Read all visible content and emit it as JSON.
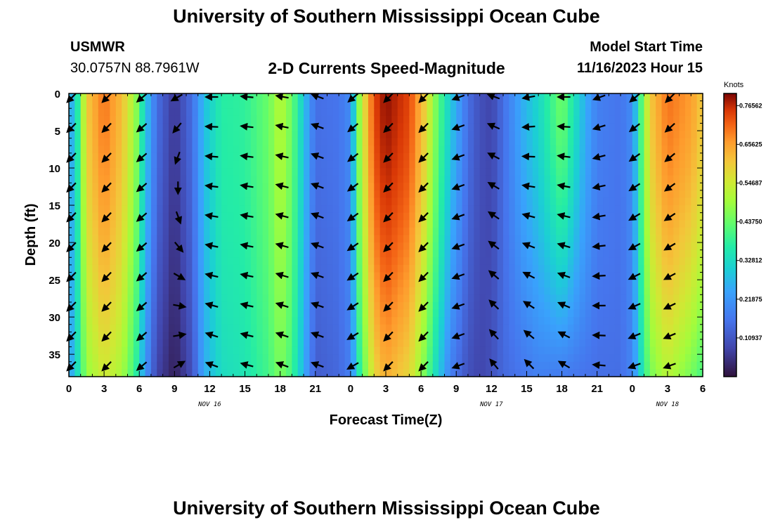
{
  "page": {
    "title_top": "University of Southern Mississippi Ocean Cube",
    "title_bottom": "University of Southern Mississippi Ocean Cube",
    "station": "USMWR",
    "coords": "30.0757N  88.7961W",
    "subtitle": "2-D Currents Speed-Magnitude",
    "model_label": "Model Start Time",
    "model_time": "11/16/2023 Hour 15"
  },
  "chart_data": {
    "type": "heatmap",
    "title": "2-D Currents Speed-Magnitude",
    "xlabel": "Forecast Time(Z)",
    "ylabel": "Depth (ft)",
    "colorbar_unit": "Knots",
    "x_range_hours": [
      0,
      54
    ],
    "y_range_ft": [
      0,
      38
    ],
    "x_ticks": [
      {
        "h": 0,
        "label": "0"
      },
      {
        "h": 3,
        "label": "3"
      },
      {
        "h": 6,
        "label": "6"
      },
      {
        "h": 9,
        "label": "9"
      },
      {
        "h": 12,
        "label": "12"
      },
      {
        "h": 15,
        "label": "15"
      },
      {
        "h": 18,
        "label": "18"
      },
      {
        "h": 21,
        "label": "21"
      },
      {
        "h": 24,
        "label": "0"
      },
      {
        "h": 27,
        "label": "3"
      },
      {
        "h": 30,
        "label": "6"
      },
      {
        "h": 33,
        "label": "9"
      },
      {
        "h": 36,
        "label": "12"
      },
      {
        "h": 39,
        "label": "15"
      },
      {
        "h": 42,
        "label": "18"
      },
      {
        "h": 45,
        "label": "21"
      },
      {
        "h": 48,
        "label": "0"
      },
      {
        "h": 51,
        "label": "3"
      },
      {
        "h": 54,
        "label": "6"
      }
    ],
    "date_labels": [
      {
        "h": 12,
        "label": "NOV 16"
      },
      {
        "h": 36,
        "label": "NOV 17"
      },
      {
        "h": 51,
        "label": "NOV 18"
      }
    ],
    "y_ticks": [
      {
        "ft": 0,
        "label": "0"
      },
      {
        "ft": 5,
        "label": "5"
      },
      {
        "ft": 10,
        "label": "10"
      },
      {
        "ft": 15,
        "label": "15"
      },
      {
        "ft": 20,
        "label": "20"
      },
      {
        "ft": 25,
        "label": "25"
      },
      {
        "ft": 30,
        "label": "30"
      },
      {
        "ft": 35,
        "label": "35"
      }
    ],
    "colorbar_range": [
      0.0,
      0.8
    ],
    "colorbar_ticks": [
      {
        "v": 0.10937,
        "label": "0.10937"
      },
      {
        "v": 0.21875,
        "label": "0.21875"
      },
      {
        "v": 0.32812,
        "label": "0.32812"
      },
      {
        "v": 0.4375,
        "label": "0.43750"
      },
      {
        "v": 0.54687,
        "label": "0.54687"
      },
      {
        "v": 0.65625,
        "label": "0.65625"
      },
      {
        "v": 0.76562,
        "label": "0.76562"
      }
    ],
    "speed_anchors_hours": [
      0,
      0.7,
      1.5,
      3,
      4.5,
      5.7,
      6.5,
      7.5,
      9,
      10.5,
      11.5,
      13,
      15,
      17,
      18,
      19,
      20.3,
      21,
      23,
      24,
      24.8,
      26,
      27,
      29,
      30.3,
      31.5,
      32.5,
      34,
      35,
      36,
      37,
      38.5,
      40,
      42,
      43.5,
      45,
      47,
      48,
      48.7,
      49.5,
      51,
      53,
      54
    ],
    "speed_surface_kn": [
      0.22,
      0.35,
      0.6,
      0.7,
      0.62,
      0.48,
      0.3,
      0.15,
      0.06,
      0.15,
      0.28,
      0.37,
      0.38,
      0.44,
      0.52,
      0.44,
      0.25,
      0.15,
      0.16,
      0.2,
      0.5,
      0.74,
      0.79,
      0.74,
      0.6,
      0.42,
      0.3,
      0.15,
      0.1,
      0.08,
      0.15,
      0.25,
      0.32,
      0.45,
      0.3,
      0.18,
      0.16,
      0.2,
      0.4,
      0.6,
      0.7,
      0.66,
      0.6
    ],
    "speed_bottom_kn": [
      0.22,
      0.33,
      0.48,
      0.55,
      0.5,
      0.38,
      0.22,
      0.08,
      0.02,
      0.1,
      0.25,
      0.33,
      0.35,
      0.4,
      0.46,
      0.4,
      0.22,
      0.12,
      0.14,
      0.18,
      0.38,
      0.58,
      0.64,
      0.58,
      0.45,
      0.3,
      0.18,
      0.1,
      0.08,
      0.1,
      0.14,
      0.16,
      0.18,
      0.17,
      0.16,
      0.15,
      0.15,
      0.19,
      0.32,
      0.45,
      0.52,
      0.45,
      0.4
    ],
    "arrow_times_hours": [
      0,
      3,
      6,
      9,
      12,
      15,
      18,
      21,
      24,
      27,
      30,
      33,
      36,
      39,
      42,
      45,
      48,
      51
    ],
    "arrow_depths_ft": [
      0,
      4,
      8,
      12,
      16,
      20,
      24,
      28,
      32,
      36
    ],
    "arrow_direction_deg_top": [
      135,
      135,
      140,
      150,
      180,
      185,
      190,
      200,
      140,
      135,
      135,
      160,
      200,
      170,
      180,
      160,
      140,
      135
    ],
    "arrow_direction_deg_bottom": [
      135,
      135,
      140,
      330,
      200,
      195,
      200,
      200,
      150,
      135,
      135,
      160,
      230,
      225,
      210,
      185,
      160,
      160
    ],
    "arrow_notes": "directions in degrees clockwise from east (SVG convention); interpolated linearly with depth"
  }
}
